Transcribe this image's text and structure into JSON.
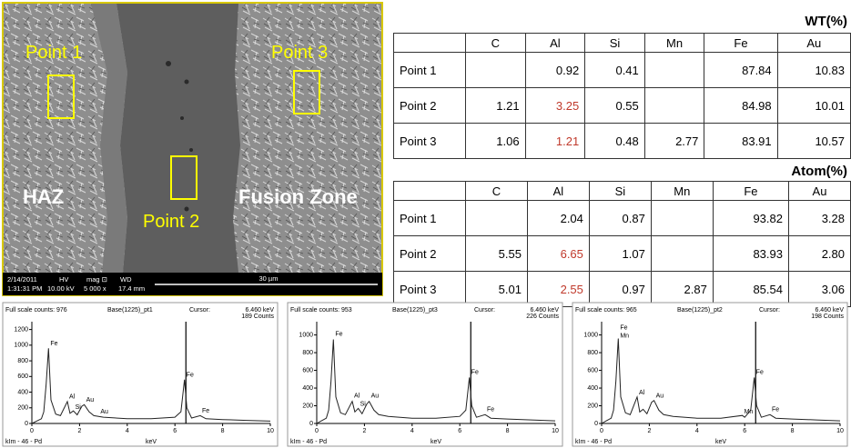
{
  "image": {
    "labels": {
      "point1": "Point 1",
      "point2": "Point 2",
      "point3": "Point 3",
      "haz": "HAZ",
      "fusion": "Fusion Zone"
    },
    "info": {
      "date": "2/14/2011",
      "time": "1:31:31 PM",
      "hv_label": "HV",
      "hv": "10.00 kV",
      "mag_label": "mag ⊡",
      "mag": "5 000 x",
      "wd_label": "WD",
      "wd": "17.4 mm",
      "scale": "30 µm"
    }
  },
  "tables": [
    {
      "unit": "WT(%)",
      "columns": [
        null,
        "C",
        "Al",
        "Si",
        "Mn",
        "Fe",
        "Au"
      ],
      "rows": [
        [
          "Point 1",
          null,
          "0.92",
          "0.41",
          null,
          "87.84",
          "10.83"
        ],
        [
          "Point 2",
          "1.21",
          "3.25",
          "0.55",
          null,
          "84.98",
          "10.01"
        ],
        [
          "Point 3",
          "1.06",
          "1.21",
          "0.48",
          "2.77",
          "83.91",
          "10.57"
        ]
      ],
      "highlight": {
        "color": "#c0392b",
        "cells": [
          [
            1,
            2
          ],
          [
            2,
            2
          ]
        ]
      }
    },
    {
      "unit": "Atom(%)",
      "columns": [
        null,
        "C",
        "Al",
        "Si",
        "Mn",
        "Fe",
        "Au"
      ],
      "rows": [
        [
          "Point 1",
          null,
          "2.04",
          "0.87",
          null,
          "93.82",
          "3.28"
        ],
        [
          "Point 2",
          "5.55",
          "6.65",
          "1.07",
          null,
          "83.93",
          "2.80"
        ],
        [
          "Point 3",
          "5.01",
          "2.55",
          "0.97",
          "2.87",
          "85.54",
          "3.06"
        ]
      ],
      "highlight": {
        "color": "#c0392b",
        "cells": [
          [
            1,
            2
          ],
          [
            2,
            2
          ]
        ]
      }
    }
  ],
  "chart_data": [
    {
      "type": "line",
      "scale_text": "Full scale counts: 976",
      "name": "Base(1225)_pt1",
      "cursor_text": "Cursor:",
      "cursor": {
        "value": 6.46,
        "label": "6.460 keV"
      },
      "counts_text": "189 Counts",
      "x": [
        0,
        0.2,
        0.4,
        0.5,
        0.6,
        0.7,
        0.8,
        1.0,
        1.2,
        1.49,
        1.6,
        1.74,
        1.9,
        2.1,
        2.2,
        2.4,
        2.6,
        3.0,
        4.0,
        5.0,
        6.0,
        6.25,
        6.4,
        6.5,
        6.7,
        7.06,
        7.3,
        8,
        9,
        10
      ],
      "values": [
        0,
        30,
        60,
        150,
        500,
        960,
        300,
        120,
        100,
        280,
        130,
        160,
        110,
        220,
        240,
        150,
        100,
        80,
        60,
        60,
        80,
        150,
        560,
        200,
        70,
        100,
        60,
        50,
        40,
        30
      ],
      "xlim": [
        0,
        10
      ],
      "ylim": [
        0,
        1300
      ],
      "xticks": [
        0,
        2,
        4,
        6,
        8,
        10
      ],
      "yticks": [
        0,
        200,
        400,
        600,
        800,
        1000,
        1200
      ],
      "x_label": "keV",
      "footer": "kIm - 46 - Pd",
      "annotations": [
        {
          "text": "Fe",
          "x": 0.7,
          "y": 1020
        },
        {
          "text": "Al",
          "x": 1.49,
          "y": 340
        },
        {
          "text": "Si",
          "x": 1.74,
          "y": 210
        },
        {
          "text": "Au",
          "x": 2.2,
          "y": 300
        },
        {
          "text": "Au",
          "x": 2.8,
          "y": 150
        },
        {
          "text": "Fe",
          "x": 6.4,
          "y": 620
        },
        {
          "text": "Fe",
          "x": 7.06,
          "y": 160
        }
      ]
    },
    {
      "type": "line",
      "scale_text": "Full scale counts: 953",
      "name": "Base(1225)_pt3",
      "cursor_text": "Cursor:",
      "cursor": {
        "value": 6.46,
        "label": "6.460 keV"
      },
      "counts_text": "226 Counts",
      "x": [
        0,
        0.2,
        0.4,
        0.5,
        0.6,
        0.7,
        0.8,
        1.0,
        1.2,
        1.49,
        1.6,
        1.74,
        1.9,
        2.1,
        2.2,
        2.4,
        2.6,
        3.0,
        4.0,
        5.0,
        6.0,
        6.25,
        6.4,
        6.5,
        6.7,
        7.06,
        7.3,
        8,
        9,
        10
      ],
      "values": [
        0,
        30,
        60,
        150,
        480,
        950,
        300,
        120,
        100,
        250,
        130,
        170,
        110,
        220,
        250,
        150,
        100,
        80,
        60,
        60,
        80,
        150,
        520,
        200,
        70,
        100,
        60,
        50,
        40,
        30
      ],
      "xlim": [
        0,
        10
      ],
      "ylim": [
        0,
        1150
      ],
      "xticks": [
        0,
        2,
        4,
        6,
        8,
        10
      ],
      "yticks": [
        0,
        200,
        400,
        600,
        800,
        1000
      ],
      "x_label": "keV",
      "footer": "kIm - 46 - Pd",
      "annotations": [
        {
          "text": "Fe",
          "x": 0.7,
          "y": 1010
        },
        {
          "text": "Al",
          "x": 1.49,
          "y": 310
        },
        {
          "text": "Si",
          "x": 1.74,
          "y": 220
        },
        {
          "text": "Au",
          "x": 2.2,
          "y": 310
        },
        {
          "text": "Fe",
          "x": 6.4,
          "y": 580
        },
        {
          "text": "Fe",
          "x": 7.06,
          "y": 160
        }
      ]
    },
    {
      "type": "line",
      "scale_text": "Full scale counts: 965",
      "name": "Base(1225)_pt2",
      "cursor_text": "Cursor:",
      "cursor": {
        "value": 6.46,
        "label": "6.460 keV"
      },
      "counts_text": "198 Counts",
      "x": [
        0,
        0.2,
        0.4,
        0.5,
        0.6,
        0.7,
        0.8,
        1.0,
        1.2,
        1.49,
        1.6,
        1.74,
        1.9,
        2.1,
        2.2,
        2.4,
        2.6,
        3.0,
        4.0,
        5.0,
        5.9,
        6.0,
        6.25,
        6.4,
        6.5,
        6.7,
        7.06,
        7.3,
        8,
        9,
        10
      ],
      "values": [
        0,
        30,
        60,
        150,
        480,
        960,
        300,
        120,
        100,
        300,
        130,
        160,
        110,
        240,
        260,
        150,
        100,
        80,
        60,
        60,
        90,
        70,
        150,
        520,
        200,
        70,
        100,
        60,
        50,
        40,
        30
      ],
      "xlim": [
        0,
        10
      ],
      "ylim": [
        0,
        1150
      ],
      "xticks": [
        0,
        2,
        4,
        6,
        8,
        10
      ],
      "yticks": [
        0,
        200,
        400,
        600,
        800,
        1000
      ],
      "x_label": "keV",
      "footer": "kIm - 46 - Pd",
      "annotations": [
        {
          "text": "Fe",
          "x": 0.7,
          "y": 1080
        },
        {
          "text": "Mn",
          "x": 0.7,
          "y": 990
        },
        {
          "text": "Al",
          "x": 1.49,
          "y": 350
        },
        {
          "text": "Au",
          "x": 2.2,
          "y": 310
        },
        {
          "text": "Mn",
          "x": 5.9,
          "y": 130
        },
        {
          "text": "Fe",
          "x": 6.4,
          "y": 580
        },
        {
          "text": "Fe",
          "x": 7.06,
          "y": 160
        }
      ]
    }
  ]
}
